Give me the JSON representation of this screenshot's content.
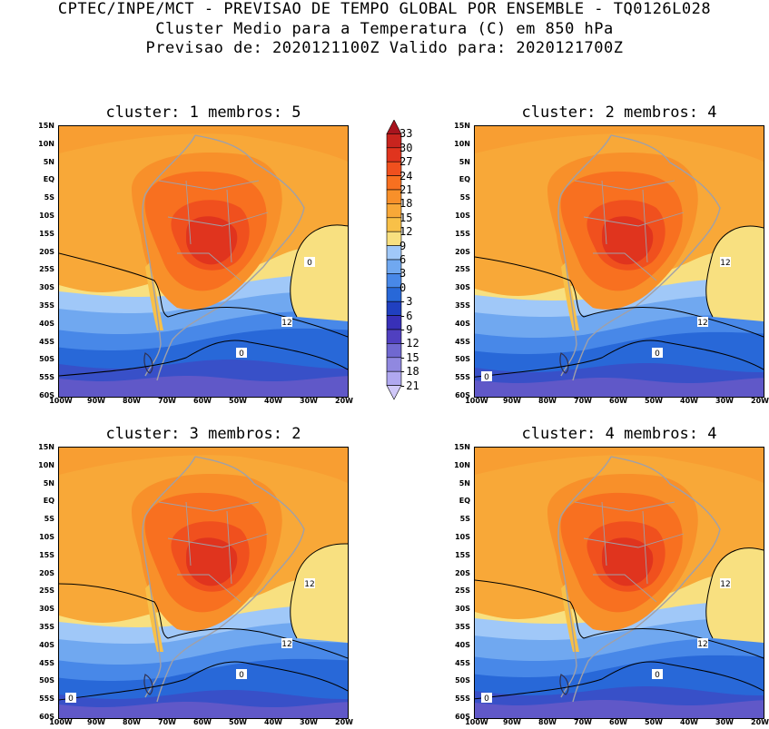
{
  "header": {
    "line1": "CPTEC/INPE/MCT - PREVISAO DE TEMPO GLOBAL POR ENSEMBLE - TQ0126L028",
    "line2": "Cluster Medio para a Temperatura (C) em 850 hPa",
    "line3": "Previsao de: 2020121100Z   Valido para: 2020121700Z"
  },
  "panels": [
    {
      "title": "cluster: 1  membros: 5"
    },
    {
      "title": "cluster: 2  membros: 4"
    },
    {
      "title": "cluster: 3  membros: 2"
    },
    {
      "title": "cluster: 4  membros: 4"
    }
  ],
  "lat_labels": [
    "15N",
    "10N",
    "5N",
    "EQ",
    "5S",
    "10S",
    "15S",
    "20S",
    "25S",
    "30S",
    "35S",
    "40S",
    "45S",
    "50S",
    "55S",
    "60S"
  ],
  "lon_labels": [
    "100W",
    "90W",
    "80W",
    "70W",
    "60W",
    "50W",
    "40W",
    "30W",
    "20W"
  ],
  "colorbar": {
    "labels": [
      "33",
      "30",
      "27",
      "24",
      "21",
      "18",
      "15",
      "12",
      "9",
      "6",
      "3",
      "0",
      "-3",
      "-6",
      "-9",
      "-12",
      "-15",
      "-18",
      "-21"
    ],
    "colors": [
      "#a8141e",
      "#c8241e",
      "#e0341e",
      "#f0501e",
      "#f87020",
      "#f8902a",
      "#f8a838",
      "#f8c048",
      "#f8e080",
      "#a0c8f8",
      "#70a8f0",
      "#4888e8",
      "#2868d8",
      "#2040c0",
      "#3830b8",
      "#5040c0",
      "#7068d0",
      "#9088e0",
      "#b0a8f0",
      "#d0c8f8"
    ]
  },
  "contour_labels": {
    "p1": [
      "12",
      "0",
      "0"
    ],
    "p2": [
      "12",
      "12",
      "0",
      "0"
    ],
    "p3": [
      "12",
      "12",
      "0",
      "0"
    ],
    "p4": [
      "12",
      "12",
      "0",
      "0"
    ]
  }
}
